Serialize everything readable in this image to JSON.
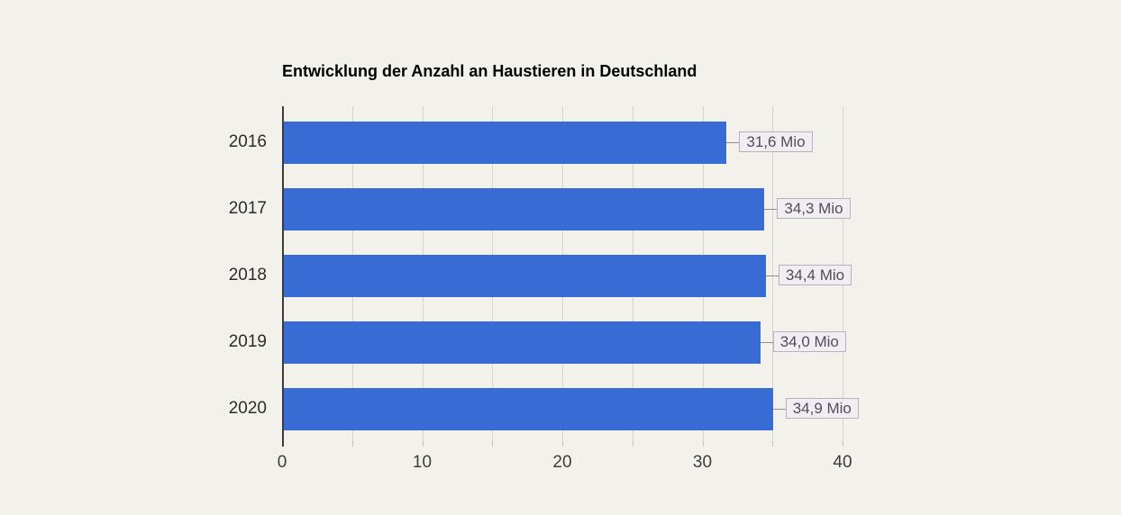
{
  "page": {
    "background": "#f2f1ec"
  },
  "chart_data": {
    "type": "bar",
    "orientation": "horizontal",
    "title": "Entwicklung der Anzahl an Haustieren in Deutschland",
    "categories": [
      "2016",
      "2017",
      "2018",
      "2019",
      "2020"
    ],
    "values": [
      31.6,
      34.3,
      34.4,
      34.0,
      34.9
    ],
    "value_labels": [
      "31,6 Mio",
      "34,3 Mio",
      "34,4 Mio",
      "34,0 Mio",
      "34,9 Mio"
    ],
    "unit": "Mio",
    "xlabel": "",
    "ylabel": "",
    "xlim": [
      0,
      40
    ],
    "x_ticks": [
      "0",
      "10",
      "20",
      "30",
      "40"
    ],
    "x_tick_values": [
      0,
      10,
      20,
      30,
      40
    ],
    "gridline_values": [
      5,
      10,
      15,
      20,
      25,
      30,
      35,
      40
    ],
    "grid": true,
    "legend": "none",
    "colors": {
      "bar": "#386bd4",
      "background": "#f2f1ec",
      "gridline": "#d6d4ce",
      "axis_line": "#3b3b3b",
      "tick": "#c6c3bd",
      "leader_line": "#8f8d8f",
      "annotation_bg": "#f2edf3",
      "annotation_border": "#b7b2b9",
      "annotation_text": "#504e58",
      "category_label": "#2c2c2c",
      "tick_label": "#3d3d3d",
      "title": "#000000"
    }
  }
}
